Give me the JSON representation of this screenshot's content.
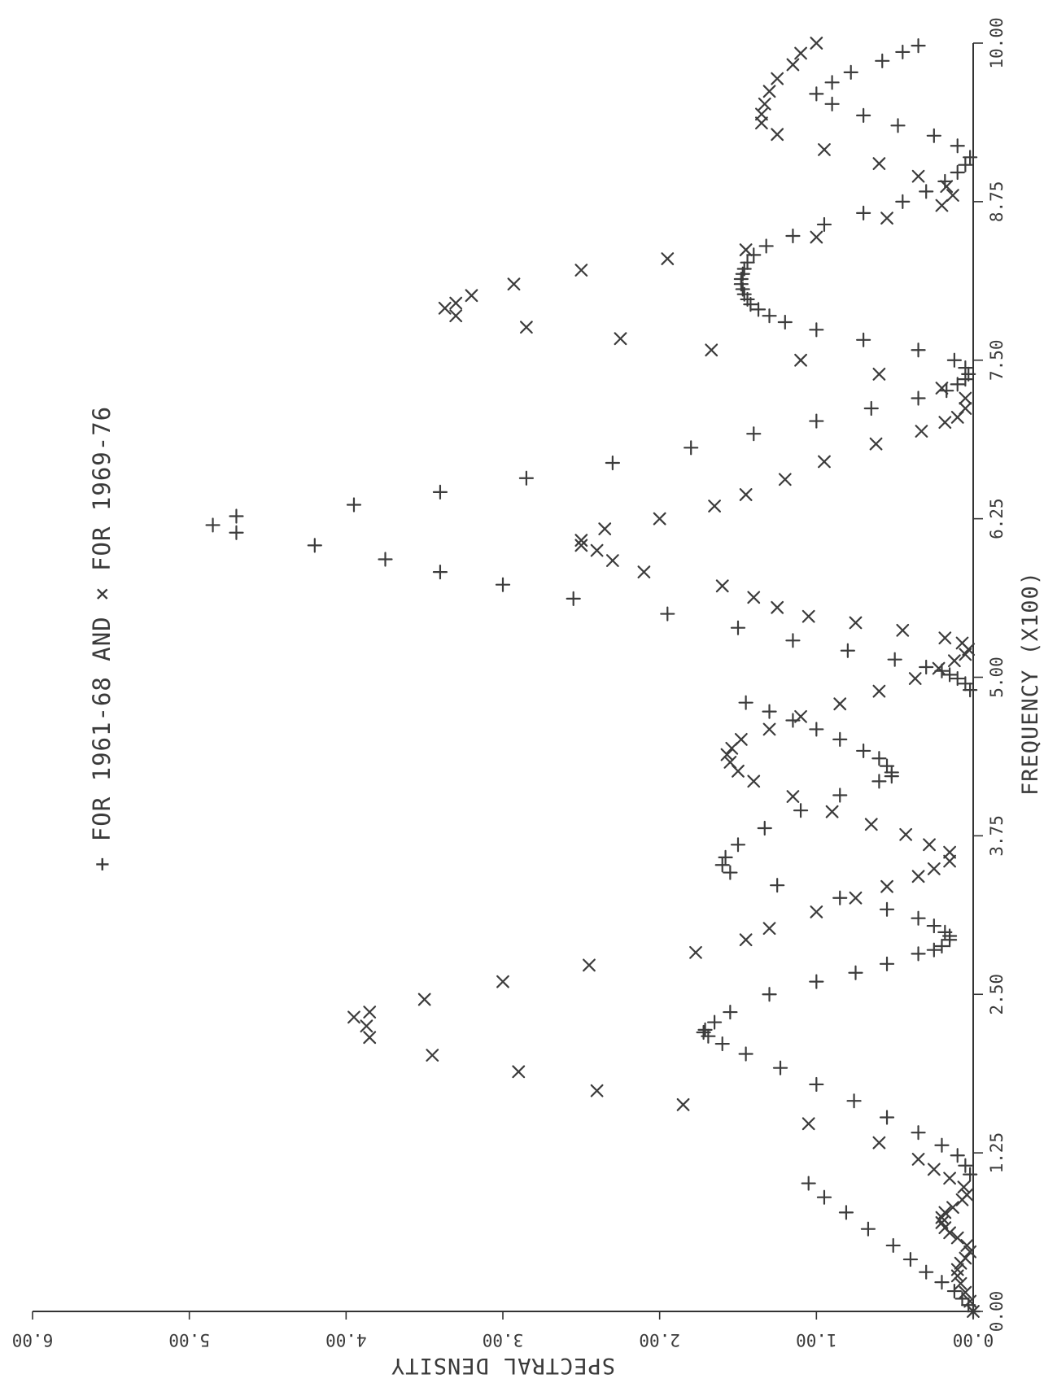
{
  "chart_data": {
    "type": "scatter",
    "xlabel": "SPECTRAL DENSITY",
    "ylabel": "FREQUENCY (X100)",
    "xlim": [
      0,
      6
    ],
    "ylim": [
      0,
      10
    ],
    "x_ticks": [
      "0.00",
      "1.00",
      "2.00",
      "3.00",
      "4.00",
      "5.00",
      "6.00"
    ],
    "y_ticks": [
      "0.00",
      "1.25",
      "2.50",
      "3.75",
      "5.00",
      "6.25",
      "7.50",
      "8.75",
      "10.00"
    ],
    "legend": {
      "text": "+ FOR 1961-68 AND × FOR 1969-76",
      "placement": "top-center"
    },
    "series": [
      {
        "name": "FOR 1961-68",
        "marker": "+",
        "points": [
          [
            0.0,
            0.0
          ],
          [
            0.03,
            0.05
          ],
          [
            0.07,
            0.1
          ],
          [
            0.12,
            0.16
          ],
          [
            0.2,
            0.23
          ],
          [
            0.3,
            0.31
          ],
          [
            0.4,
            0.41
          ],
          [
            0.51,
            0.52
          ],
          [
            0.67,
            0.65
          ],
          [
            0.81,
            0.78
          ],
          [
            0.95,
            0.9
          ],
          [
            1.05,
            1.01
          ],
          [
            0.02,
            1.08
          ],
          [
            0.05,
            1.15
          ],
          [
            0.1,
            1.23
          ],
          [
            0.2,
            1.31
          ],
          [
            0.35,
            1.41
          ],
          [
            0.55,
            1.53
          ],
          [
            0.76,
            1.66
          ],
          [
            1.0,
            1.79
          ],
          [
            1.23,
            1.92
          ],
          [
            1.45,
            2.03
          ],
          [
            1.6,
            2.11
          ],
          [
            1.69,
            2.17
          ],
          [
            1.72,
            2.2
          ],
          [
            1.71,
            2.22
          ],
          [
            1.65,
            2.28
          ],
          [
            1.55,
            2.36
          ],
          [
            1.3,
            2.5
          ],
          [
            1.0,
            2.6
          ],
          [
            0.75,
            2.67
          ],
          [
            0.55,
            2.74
          ],
          [
            0.35,
            2.82
          ],
          [
            0.25,
            2.85
          ],
          [
            0.2,
            2.88
          ],
          [
            0.15,
            2.93
          ],
          [
            0.15,
            2.96
          ],
          [
            0.18,
            2.99
          ],
          [
            0.25,
            3.04
          ],
          [
            0.35,
            3.1
          ],
          [
            0.55,
            3.17
          ],
          [
            0.85,
            3.26
          ],
          [
            1.25,
            3.36
          ],
          [
            1.55,
            3.46
          ],
          [
            1.6,
            3.52
          ],
          [
            1.58,
            3.58
          ],
          [
            1.5,
            3.68
          ],
          [
            1.33,
            3.81
          ],
          [
            1.1,
            3.95
          ],
          [
            0.85,
            4.07
          ],
          [
            0.6,
            4.18
          ],
          [
            0.52,
            4.22
          ],
          [
            0.52,
            4.25
          ],
          [
            0.55,
            4.3
          ],
          [
            0.6,
            4.36
          ],
          [
            0.7,
            4.42
          ],
          [
            0.85,
            4.51
          ],
          [
            1.0,
            4.59
          ],
          [
            1.15,
            4.66
          ],
          [
            1.3,
            4.73
          ],
          [
            1.45,
            4.8
          ],
          [
            0.02,
            4.9
          ],
          [
            0.05,
            4.95
          ],
          [
            0.1,
            4.99
          ],
          [
            0.15,
            5.02
          ],
          [
            0.2,
            5.05
          ],
          [
            0.3,
            5.08
          ],
          [
            0.5,
            5.14
          ],
          [
            0.8,
            5.21
          ],
          [
            1.15,
            5.29
          ],
          [
            1.5,
            5.39
          ],
          [
            1.95,
            5.5
          ],
          [
            2.55,
            5.62
          ],
          [
            3.0,
            5.73
          ],
          [
            3.4,
            5.83
          ],
          [
            3.75,
            5.93
          ],
          [
            4.2,
            6.04
          ],
          [
            4.7,
            6.14
          ],
          [
            4.85,
            6.2
          ],
          [
            4.7,
            6.27
          ],
          [
            3.95,
            6.36
          ],
          [
            3.4,
            6.46
          ],
          [
            2.85,
            6.57
          ],
          [
            2.3,
            6.69
          ],
          [
            1.8,
            6.81
          ],
          [
            1.4,
            6.92
          ],
          [
            1.0,
            7.02
          ],
          [
            0.65,
            7.12
          ],
          [
            0.35,
            7.2
          ],
          [
            0.17,
            7.26
          ],
          [
            0.1,
            7.31
          ],
          [
            0.05,
            7.35
          ],
          [
            0.03,
            7.39
          ],
          [
            0.05,
            7.44
          ],
          [
            0.12,
            7.5
          ],
          [
            0.35,
            7.58
          ],
          [
            0.7,
            7.66
          ],
          [
            1.0,
            7.74
          ],
          [
            1.2,
            7.8
          ],
          [
            1.3,
            7.85
          ],
          [
            1.37,
            7.9
          ],
          [
            1.42,
            7.94
          ],
          [
            1.44,
            7.98
          ],
          [
            1.46,
            8.02
          ],
          [
            1.47,
            8.06
          ],
          [
            1.48,
            8.1
          ],
          [
            1.48,
            8.14
          ],
          [
            1.47,
            8.18
          ],
          [
            1.46,
            8.22
          ],
          [
            1.44,
            8.27
          ],
          [
            1.4,
            8.33
          ],
          [
            1.32,
            8.4
          ],
          [
            1.15,
            8.48
          ],
          [
            0.95,
            8.57
          ],
          [
            0.7,
            8.66
          ],
          [
            0.45,
            8.75
          ],
          [
            0.3,
            8.83
          ],
          [
            0.18,
            8.91
          ],
          [
            0.1,
            8.98
          ],
          [
            0.05,
            9.04
          ],
          [
            0.02,
            9.1
          ],
          [
            0.1,
            9.19
          ],
          [
            0.25,
            9.27
          ],
          [
            0.48,
            9.35
          ],
          [
            0.7,
            9.43
          ],
          [
            0.9,
            9.52
          ],
          [
            1.0,
            9.6
          ],
          [
            0.9,
            9.69
          ],
          [
            0.78,
            9.77
          ],
          [
            0.58,
            9.86
          ],
          [
            0.45,
            9.93
          ],
          [
            0.35,
            9.98
          ]
        ]
      },
      {
        "name": "FOR 1969-76",
        "marker": "×",
        "points": [
          [
            0.0,
            0.0
          ],
          [
            0.02,
            0.08
          ],
          [
            0.05,
            0.15
          ],
          [
            0.08,
            0.22
          ],
          [
            0.1,
            0.28
          ],
          [
            0.1,
            0.33
          ],
          [
            0.08,
            0.38
          ],
          [
            0.05,
            0.42
          ],
          [
            0.02,
            0.47
          ],
          [
            0.04,
            0.52
          ],
          [
            0.1,
            0.58
          ],
          [
            0.15,
            0.62
          ],
          [
            0.18,
            0.66
          ],
          [
            0.2,
            0.7
          ],
          [
            0.2,
            0.74
          ],
          [
            0.18,
            0.78
          ],
          [
            0.13,
            0.82
          ],
          [
            0.07,
            0.88
          ],
          [
            0.04,
            0.92
          ],
          [
            0.06,
            0.98
          ],
          [
            0.15,
            1.05
          ],
          [
            0.25,
            1.12
          ],
          [
            0.35,
            1.2
          ],
          [
            0.6,
            1.33
          ],
          [
            1.05,
            1.48
          ],
          [
            1.85,
            1.63
          ],
          [
            2.4,
            1.74
          ],
          [
            2.9,
            1.89
          ],
          [
            3.45,
            2.02
          ],
          [
            3.85,
            2.16
          ],
          [
            3.87,
            2.25
          ],
          [
            3.95,
            2.32
          ],
          [
            3.85,
            2.36
          ],
          [
            3.5,
            2.46
          ],
          [
            3.0,
            2.6
          ],
          [
            2.45,
            2.73
          ],
          [
            1.77,
            2.83
          ],
          [
            1.45,
            2.93
          ],
          [
            1.3,
            3.02
          ],
          [
            1.0,
            3.15
          ],
          [
            0.75,
            3.26
          ],
          [
            0.55,
            3.35
          ],
          [
            0.35,
            3.43
          ],
          [
            0.25,
            3.49
          ],
          [
            0.15,
            3.55
          ],
          [
            0.15,
            3.62
          ],
          [
            0.28,
            3.68
          ],
          [
            0.43,
            3.76
          ],
          [
            0.65,
            3.84
          ],
          [
            0.9,
            3.94
          ],
          [
            1.15,
            4.06
          ],
          [
            1.4,
            4.18
          ],
          [
            1.5,
            4.26
          ],
          [
            1.55,
            4.33
          ],
          [
            1.57,
            4.39
          ],
          [
            1.54,
            4.44
          ],
          [
            1.48,
            4.51
          ],
          [
            1.3,
            4.59
          ],
          [
            1.1,
            4.69
          ],
          [
            0.85,
            4.79
          ],
          [
            0.6,
            4.89
          ],
          [
            0.37,
            4.99
          ],
          [
            0.22,
            5.07
          ],
          [
            0.12,
            5.13
          ],
          [
            0.05,
            5.18
          ],
          [
            0.03,
            5.22
          ],
          [
            0.07,
            5.27
          ],
          [
            0.18,
            5.31
          ],
          [
            0.45,
            5.37
          ],
          [
            0.75,
            5.43
          ],
          [
            1.05,
            5.48
          ],
          [
            1.25,
            5.55
          ],
          [
            1.4,
            5.63
          ],
          [
            1.6,
            5.72
          ],
          [
            2.1,
            5.83
          ],
          [
            2.3,
            5.92
          ],
          [
            2.4,
            6.0
          ],
          [
            2.5,
            6.04
          ],
          [
            2.5,
            6.08
          ],
          [
            2.35,
            6.17
          ],
          [
            2.0,
            6.25
          ],
          [
            1.65,
            6.35
          ],
          [
            1.45,
            6.44
          ],
          [
            1.2,
            6.56
          ],
          [
            0.95,
            6.7
          ],
          [
            0.62,
            6.84
          ],
          [
            0.33,
            6.94
          ],
          [
            0.18,
            7.01
          ],
          [
            0.1,
            7.05
          ],
          [
            0.05,
            7.12
          ],
          [
            0.05,
            7.2
          ],
          [
            0.2,
            7.28
          ],
          [
            0.6,
            7.39
          ],
          [
            1.1,
            7.5
          ],
          [
            1.67,
            7.58
          ],
          [
            2.25,
            7.67
          ],
          [
            2.85,
            7.76
          ],
          [
            3.3,
            7.85
          ],
          [
            3.37,
            7.91
          ],
          [
            3.3,
            7.95
          ],
          [
            3.2,
            8.01
          ],
          [
            2.93,
            8.1
          ],
          [
            2.5,
            8.21
          ],
          [
            1.95,
            8.3
          ],
          [
            1.45,
            8.37
          ],
          [
            1.0,
            8.47
          ],
          [
            0.55,
            8.62
          ],
          [
            0.2,
            8.72
          ],
          [
            0.13,
            8.8
          ],
          [
            0.17,
            8.87
          ],
          [
            0.35,
            8.95
          ],
          [
            0.6,
            9.05
          ],
          [
            0.95,
            9.16
          ],
          [
            1.25,
            9.28
          ],
          [
            1.35,
            9.37
          ],
          [
            1.35,
            9.44
          ],
          [
            1.33,
            9.52
          ],
          [
            1.3,
            9.62
          ],
          [
            1.25,
            9.72
          ],
          [
            1.15,
            9.83
          ],
          [
            1.1,
            9.92
          ],
          [
            1.0,
            10.0
          ]
        ]
      }
    ]
  }
}
